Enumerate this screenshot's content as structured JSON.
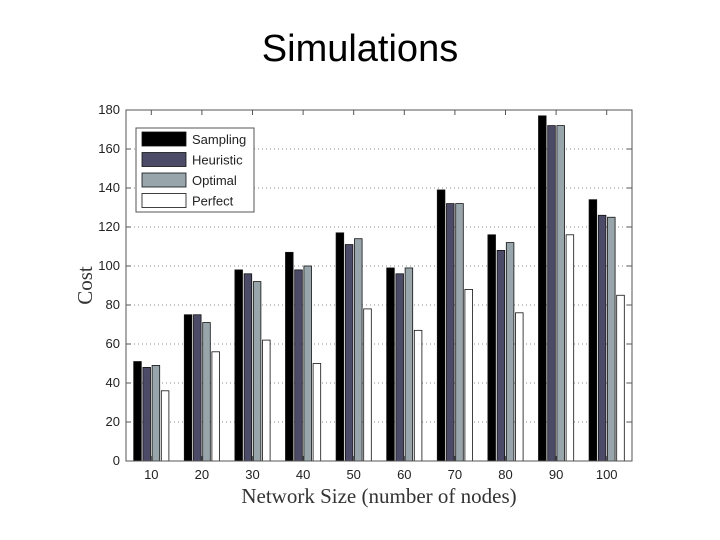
{
  "slide": {
    "title": "Simulations"
  },
  "chart_data": {
    "type": "bar",
    "title": "",
    "xlabel": "Network Size (number of nodes)",
    "ylabel": "Cost",
    "ylim": [
      0,
      180
    ],
    "yticks": [
      0,
      20,
      40,
      60,
      80,
      100,
      120,
      140,
      160,
      180
    ],
    "grid": "dotted-horizontal",
    "legend_position": "top-left",
    "categories": [
      "10",
      "20",
      "30",
      "40",
      "50",
      "60",
      "70",
      "80",
      "90",
      "100"
    ],
    "series": [
      {
        "name": "Sampling",
        "color": "#000000",
        "values": [
          51,
          75,
          98,
          107,
          117,
          99,
          139,
          116,
          177,
          134
        ]
      },
      {
        "name": "Heuristic",
        "color": "#4b4b68",
        "values": [
          48,
          75,
          96,
          98,
          111,
          96,
          132,
          108,
          172,
          126
        ]
      },
      {
        "name": "Optimal",
        "color": "#98a6ab",
        "values": [
          49,
          71,
          92,
          100,
          114,
          99,
          132,
          112,
          172,
          125
        ]
      },
      {
        "name": "Perfect",
        "color": "#ffffff",
        "values": [
          36,
          56,
          62,
          50,
          78,
          67,
          88,
          76,
          116,
          85
        ]
      }
    ]
  }
}
